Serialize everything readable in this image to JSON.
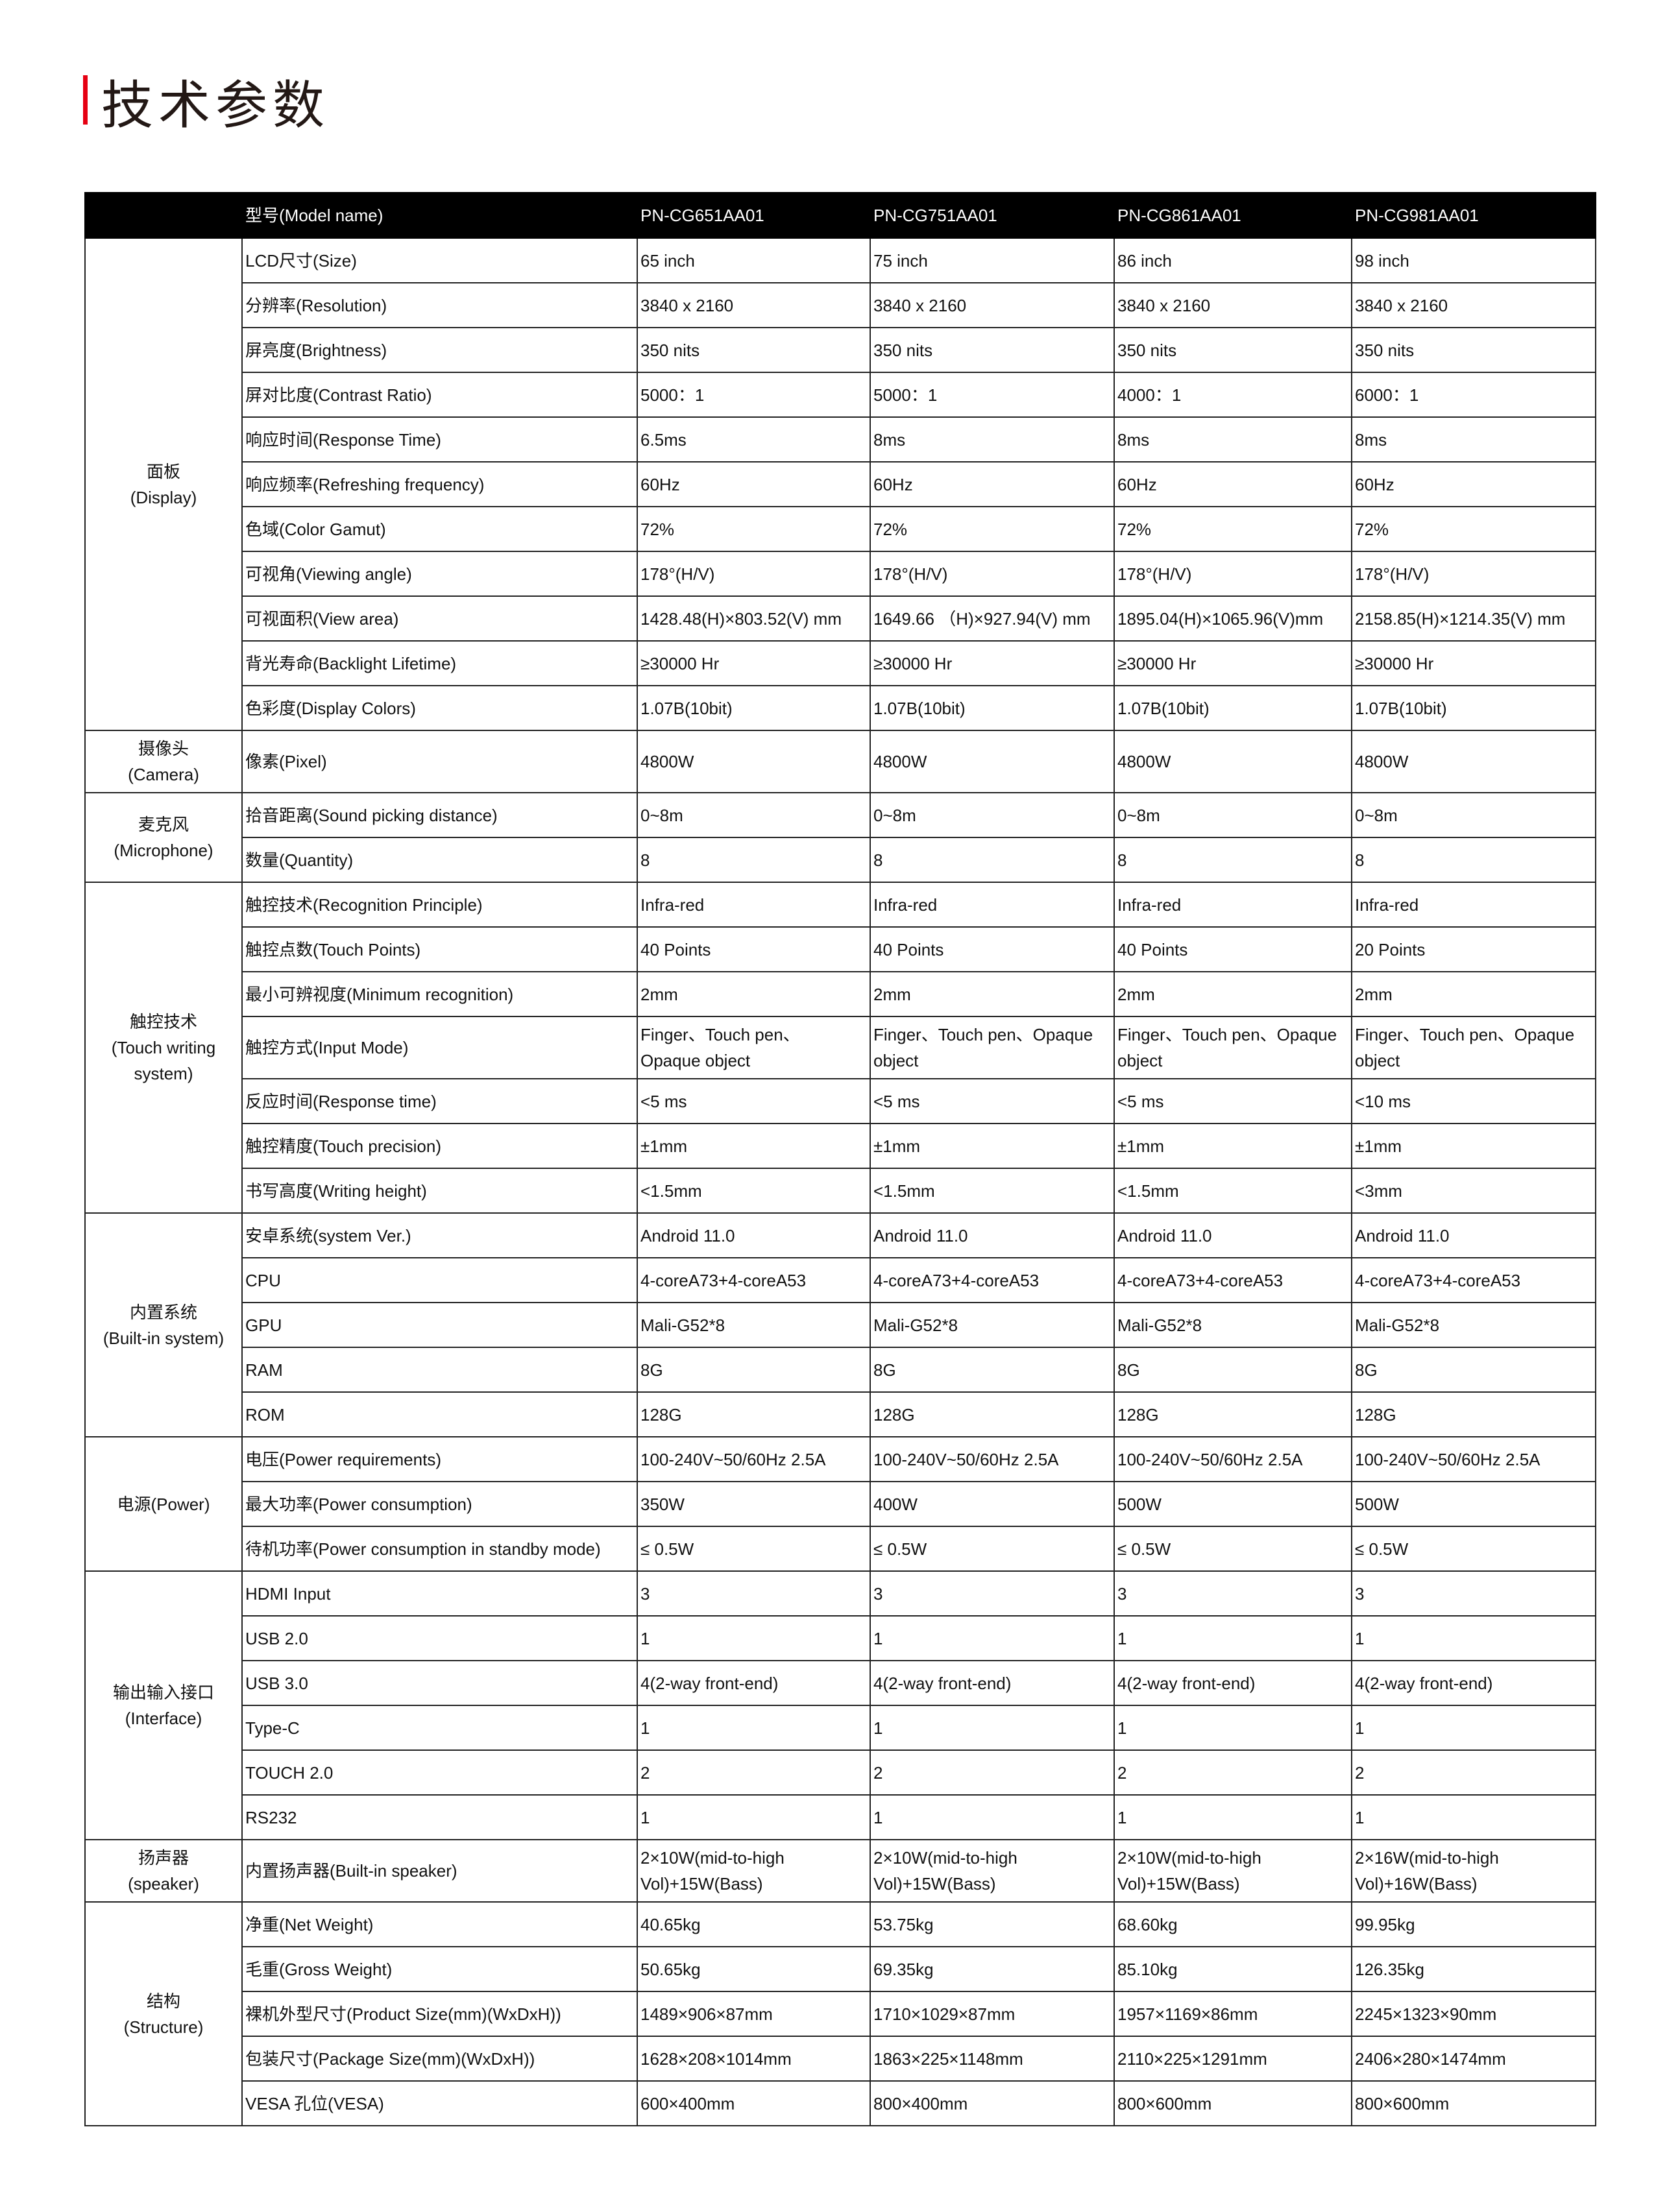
{
  "title": "技术参数",
  "accent_color": "#e60012",
  "header": {
    "label": "型号(Model name)",
    "models": [
      "PN-CG651AA01",
      "PN-CG751AA01",
      "PN-CG861AA01",
      "PN-CG981AA01"
    ]
  },
  "groups": [
    {
      "name": "面板\n(Display)",
      "rows": [
        {
          "label": "LCD尺寸(Size)",
          "values": [
            "65 inch",
            "75 inch",
            "86 inch",
            "98 inch"
          ]
        },
        {
          "label": "分辨率(Resolution)",
          "values": [
            "3840 x 2160",
            "3840 x 2160",
            "3840 x 2160",
            "3840 x 2160"
          ]
        },
        {
          "label": "屏亮度(Brightness)",
          "values": [
            "350 nits",
            "350 nits",
            "350 nits",
            "350 nits"
          ]
        },
        {
          "label": "屏对比度(Contrast Ratio)",
          "values": [
            "5000：1",
            "5000：1",
            "4000：1",
            "6000：1"
          ]
        },
        {
          "label": "响应时间(Response Time)",
          "values": [
            "6.5ms",
            "8ms",
            "8ms",
            "8ms"
          ]
        },
        {
          "label": "响应频率(Refreshing frequency)",
          "values": [
            "60Hz",
            "60Hz",
            "60Hz",
            "60Hz"
          ]
        },
        {
          "label": "色域(Color Gamut)",
          "values": [
            "72%",
            "72%",
            "72%",
            "72%"
          ]
        },
        {
          "label": "可视角(Viewing angle)",
          "values": [
            "178°(H/V)",
            "178°(H/V)",
            "178°(H/V)",
            "178°(H/V)"
          ]
        },
        {
          "label": "可视面积(View area)",
          "values": [
            "1428.48(H)×803.52(V) mm",
            "1649.66 （H)×927.94(V) mm",
            "1895.04(H)×1065.96(V)mm",
            "2158.85(H)×1214.35(V) mm"
          ]
        },
        {
          "label": "背光寿命(Backlight Lifetime)",
          "values": [
            "≥30000 Hr",
            "≥30000 Hr",
            "≥30000 Hr",
            "≥30000 Hr"
          ]
        },
        {
          "label": "色彩度(Display Colors)",
          "values": [
            "1.07B(10bit)",
            "1.07B(10bit)",
            "1.07B(10bit)",
            "1.07B(10bit)"
          ]
        }
      ]
    },
    {
      "name": "摄像头\n(Camera)",
      "rows": [
        {
          "label": "像素(Pixel)",
          "values": [
            "4800W",
            "4800W",
            "4800W",
            "4800W"
          ],
          "tall": true
        }
      ]
    },
    {
      "name": "麦克风\n(Microphone)",
      "rows": [
        {
          "label": "拾音距离(Sound picking distance)",
          "values": [
            "0~8m",
            "0~8m",
            "0~8m",
            "0~8m"
          ]
        },
        {
          "label": "数量(Quantity)",
          "values": [
            "8",
            "8",
            "8",
            "8"
          ]
        }
      ]
    },
    {
      "name": "触控技术\n(Touch writing\nsystem)",
      "rows": [
        {
          "label": "触控技术(Recognition Principle)",
          "values": [
            "Infra-red",
            "Infra-red",
            "Infra-red",
            "Infra-red"
          ]
        },
        {
          "label": "触控点数(Touch Points)",
          "values": [
            "40 Points",
            "40 Points",
            "40 Points",
            "20 Points"
          ]
        },
        {
          "label": "最小可辨视度(Minimum  recognition)",
          "values": [
            "2mm",
            "2mm",
            "2mm",
            "2mm"
          ]
        },
        {
          "label": "触控方式(Input Mode)",
          "values": [
            "Finger、Touch pen、\nOpaque object",
            "Finger、Touch pen、Opaque\nobject",
            "Finger、Touch pen、Opaque\nobject",
            "Finger、Touch pen、Opaque\nobject"
          ],
          "tall": true
        },
        {
          "label": "反应时间(Response time)",
          "values": [
            "<5 ms",
            "<5 ms",
            "<5 ms",
            "<10 ms"
          ]
        },
        {
          "label": "触控精度(Touch precision)",
          "values": [
            "±1mm",
            "±1mm",
            "±1mm",
            "±1mm"
          ]
        },
        {
          "label": "书写高度(Writing height)",
          "values": [
            "<1.5mm",
            "<1.5mm",
            "<1.5mm",
            "<3mm"
          ]
        }
      ]
    },
    {
      "name": "内置系统\n(Built-in system)",
      "rows": [
        {
          "label": "安卓系统(system Ver.)",
          "values": [
            "Android 11.0",
            "Android 11.0",
            "Android 11.0",
            "Android 11.0"
          ]
        },
        {
          "label": "CPU",
          "values": [
            "4-coreA73+4-coreA53",
            "4-coreA73+4-coreA53",
            "4-coreA73+4-coreA53",
            "4-coreA73+4-coreA53"
          ]
        },
        {
          "label": "GPU",
          "values": [
            "Mali-G52*8",
            "Mali-G52*8",
            "Mali-G52*8",
            "Mali-G52*8"
          ]
        },
        {
          "label": "RAM",
          "values": [
            "8G",
            "8G",
            "8G",
            "8G"
          ]
        },
        {
          "label": "ROM",
          "values": [
            "128G",
            "128G",
            "128G",
            "128G"
          ]
        }
      ]
    },
    {
      "name": "电源(Power)",
      "rows": [
        {
          "label": "电压(Power requirements)",
          "values": [
            "100-240V~50/60Hz 2.5A",
            "100-240V~50/60Hz 2.5A",
            "100-240V~50/60Hz 2.5A",
            "100-240V~50/60Hz 2.5A"
          ]
        },
        {
          "label": "最大功率(Power consumption)",
          "values": [
            "350W",
            "400W",
            "500W",
            "500W"
          ]
        },
        {
          "label": "待机功率(Power consumption in standby mode)",
          "values": [
            "≤ 0.5W",
            "≤ 0.5W",
            "≤ 0.5W",
            "≤ 0.5W"
          ]
        }
      ]
    },
    {
      "name": "输出输入接口\n(Interface)",
      "rows": [
        {
          "label": "HDMI Input",
          "values": [
            "3",
            "3",
            "3",
            "3"
          ]
        },
        {
          "label": "USB 2.0",
          "values": [
            "1",
            "1",
            "1",
            "1"
          ]
        },
        {
          "label": "USB 3.0",
          "values": [
            "4(2-way front-end)",
            "4(2-way front-end)",
            "4(2-way front-end)",
            "4(2-way front-end)"
          ]
        },
        {
          "label": "Type-C",
          "values": [
            "1",
            "1",
            "1",
            "1"
          ]
        },
        {
          "label": "TOUCH 2.0",
          "values": [
            "2",
            "2",
            "2",
            "2"
          ]
        },
        {
          "label": "RS232",
          "values": [
            "1",
            "1",
            "1",
            "1"
          ]
        }
      ]
    },
    {
      "name": "扬声器\n(speaker)",
      "rows": [
        {
          "label": "内置扬声器(Built-in speaker)",
          "values": [
            "2×10W(mid-to-high\nVol)+15W(Bass)",
            "2×10W(mid-to-high\nVol)+15W(Bass)",
            "2×10W(mid-to-high\nVol)+15W(Bass)",
            "2×16W(mid-to-high\nVol)+16W(Bass)"
          ],
          "tall": true
        }
      ]
    },
    {
      "name": "结构\n(Structure)",
      "rows": [
        {
          "label": "净重(Net Weight)",
          "values": [
            "40.65kg",
            "53.75kg",
            "68.60kg",
            "99.95kg"
          ]
        },
        {
          "label": "毛重(Gross Weight)",
          "values": [
            "50.65kg",
            "69.35kg",
            "85.10kg",
            "126.35kg"
          ]
        },
        {
          "label": "裸机外型尺寸(Product Size(mm)(WxDxH))",
          "values": [
            "1489×906×87mm",
            "1710×1029×87mm",
            "1957×1169×86mm",
            "2245×1323×90mm"
          ]
        },
        {
          "label": "包装尺寸(Package Size(mm)(WxDxH))",
          "values": [
            "1628×208×1014mm",
            "1863×225×1148mm",
            "2110×225×1291mm",
            "2406×280×1474mm"
          ]
        },
        {
          "label": "VESA 孔位(VESA)",
          "values": [
            "600×400mm",
            "800×400mm",
            "800×600mm",
            "800×600mm"
          ]
        }
      ]
    }
  ]
}
